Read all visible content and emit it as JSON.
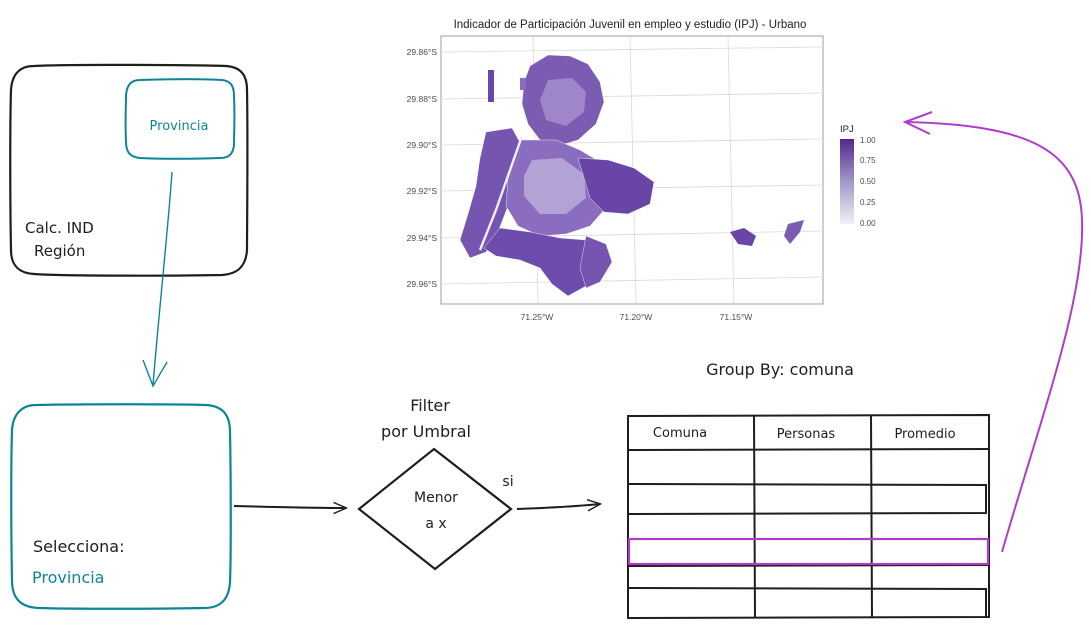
{
  "map": {
    "title": "Indicador de Participación Juvenil en empleo y estudio (IPJ) - Urbano",
    "y_ticks": [
      "29.86°S",
      "29.88°S",
      "29.90°S",
      "29.92°S",
      "29.94°S",
      "29.96°S"
    ],
    "x_ticks": [
      "71.25°W",
      "71.20°W",
      "71.15°W"
    ],
    "legend_title": "IPJ",
    "legend_ticks": [
      "1.00",
      "0.75",
      "0.50",
      "0.25",
      "0.00"
    ],
    "palette": {
      "low": "#f2f0f7",
      "high": "#54278f"
    }
  },
  "region_box": {
    "label_line1": "Calc. IND",
    "label_line2": "Región",
    "inner_label": "Provincia"
  },
  "select_box": {
    "label": "Selecciona:",
    "value": "Provincia"
  },
  "filter": {
    "title_line1": "Filter",
    "title_line2": "por Umbral",
    "diamond_line1": "Menor",
    "diamond_line2": "a x",
    "branch": "si"
  },
  "table": {
    "title": "Group By: comuna",
    "headers": [
      "Comuna",
      "Personas",
      "Promedio"
    ]
  },
  "colors": {
    "teal": "#0c8599",
    "purple": "#ae3ec9",
    "ink": "#1e1e1e"
  }
}
